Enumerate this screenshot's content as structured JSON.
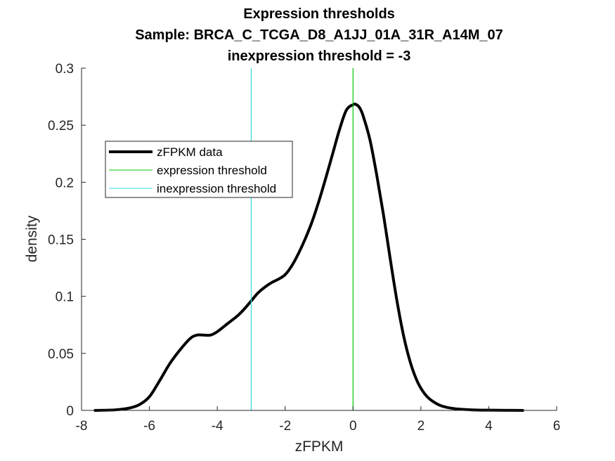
{
  "chart_data": {
    "type": "line",
    "title": "Expression thresholds",
    "subtitle_lines": [
      "Sample: BRCA_C_TCGA_D8_A1JJ_01A_31R_A14M_07",
      "inexpression threshold = -3"
    ],
    "xlabel": "zFPKM",
    "ylabel": "density",
    "xlim": [
      -8,
      6
    ],
    "ylim": [
      0,
      0.3
    ],
    "xticks": [
      "-8",
      "-6",
      "-4",
      "-2",
      "0",
      "2",
      "4",
      "6"
    ],
    "yticks": [
      "0",
      "0.05",
      "0.1",
      "0.15",
      "0.2",
      "0.25",
      "0.3"
    ],
    "grid": false,
    "legend_position": "upper-left",
    "series": [
      {
        "name": "zFPKM data",
        "color": "#000000",
        "x": [
          -7.6,
          -7.0,
          -6.6,
          -6.3,
          -6.0,
          -5.7,
          -5.4,
          -5.1,
          -4.8,
          -4.6,
          -4.4,
          -4.2,
          -4.0,
          -3.7,
          -3.4,
          -3.2,
          -3.0,
          -2.8,
          -2.6,
          -2.4,
          -2.2,
          -2.0,
          -1.8,
          -1.6,
          -1.4,
          -1.2,
          -1.0,
          -0.8,
          -0.6,
          -0.4,
          -0.2,
          0.0,
          0.1,
          0.2,
          0.3,
          0.5,
          0.7,
          0.9,
          1.1,
          1.3,
          1.5,
          1.7,
          1.9,
          2.1,
          2.3,
          2.6,
          3.0,
          3.5,
          4.0,
          4.5,
          5.0
        ],
        "y": [
          0.0,
          0.0005,
          0.002,
          0.005,
          0.012,
          0.026,
          0.041,
          0.053,
          0.063,
          0.066,
          0.066,
          0.066,
          0.069,
          0.076,
          0.083,
          0.089,
          0.096,
          0.103,
          0.108,
          0.112,
          0.115,
          0.119,
          0.127,
          0.138,
          0.151,
          0.166,
          0.184,
          0.204,
          0.225,
          0.246,
          0.263,
          0.268,
          0.268,
          0.265,
          0.258,
          0.237,
          0.206,
          0.171,
          0.132,
          0.095,
          0.064,
          0.041,
          0.025,
          0.015,
          0.009,
          0.004,
          0.0015,
          0.0005,
          0.0002,
          0.0001,
          0.0
        ]
      },
      {
        "name": "expression threshold",
        "color": "#00cc00",
        "vertical_at": 0
      },
      {
        "name": "inexpression threshold",
        "color": "#33dddd",
        "vertical_at": -3
      }
    ]
  }
}
